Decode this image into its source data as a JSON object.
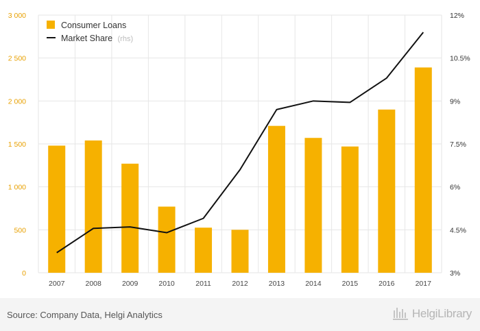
{
  "chart_data": {
    "type": "bar",
    "categories": [
      "2007",
      "2008",
      "2009",
      "2010",
      "2011",
      "2012",
      "2013",
      "2014",
      "2015",
      "2016",
      "2017"
    ],
    "series": [
      {
        "name": "Consumer Loans",
        "type": "bar",
        "axis": "left",
        "values": [
          1480,
          1540,
          1270,
          770,
          525,
          500,
          1710,
          1570,
          1470,
          1900,
          2390
        ]
      },
      {
        "name": "Market Share",
        "axis_note": "(rhs)",
        "type": "line",
        "axis": "right",
        "values": [
          3.7,
          4.55,
          4.6,
          4.4,
          4.9,
          6.6,
          8.7,
          9.0,
          8.95,
          9.8,
          11.4
        ]
      }
    ],
    "y_left": {
      "min": 0,
      "max": 3000,
      "ticks": [
        0,
        500,
        1000,
        1500,
        2000,
        2500,
        3000
      ],
      "tick_labels": [
        "0",
        "500",
        "1 000",
        "1 500",
        "2 000",
        "2 500",
        "3 000"
      ]
    },
    "y_right": {
      "min": 3,
      "max": 12,
      "ticks": [
        3,
        4.5,
        6,
        7.5,
        9,
        10.5,
        12
      ],
      "tick_labels": [
        "3%",
        "4.5%",
        "6%",
        "7.5%",
        "9%",
        "10.5%",
        "12%"
      ]
    },
    "grid": true,
    "legend_position": "top-left",
    "colors": {
      "bar": "#f6b100",
      "line": "#111111",
      "grid": "#e6e6e6",
      "left_ticks": "#e8a000"
    }
  },
  "footer": {
    "source": "Source: Company Data, Helgi Analytics",
    "logo_text": "HelgiLibrary"
  }
}
